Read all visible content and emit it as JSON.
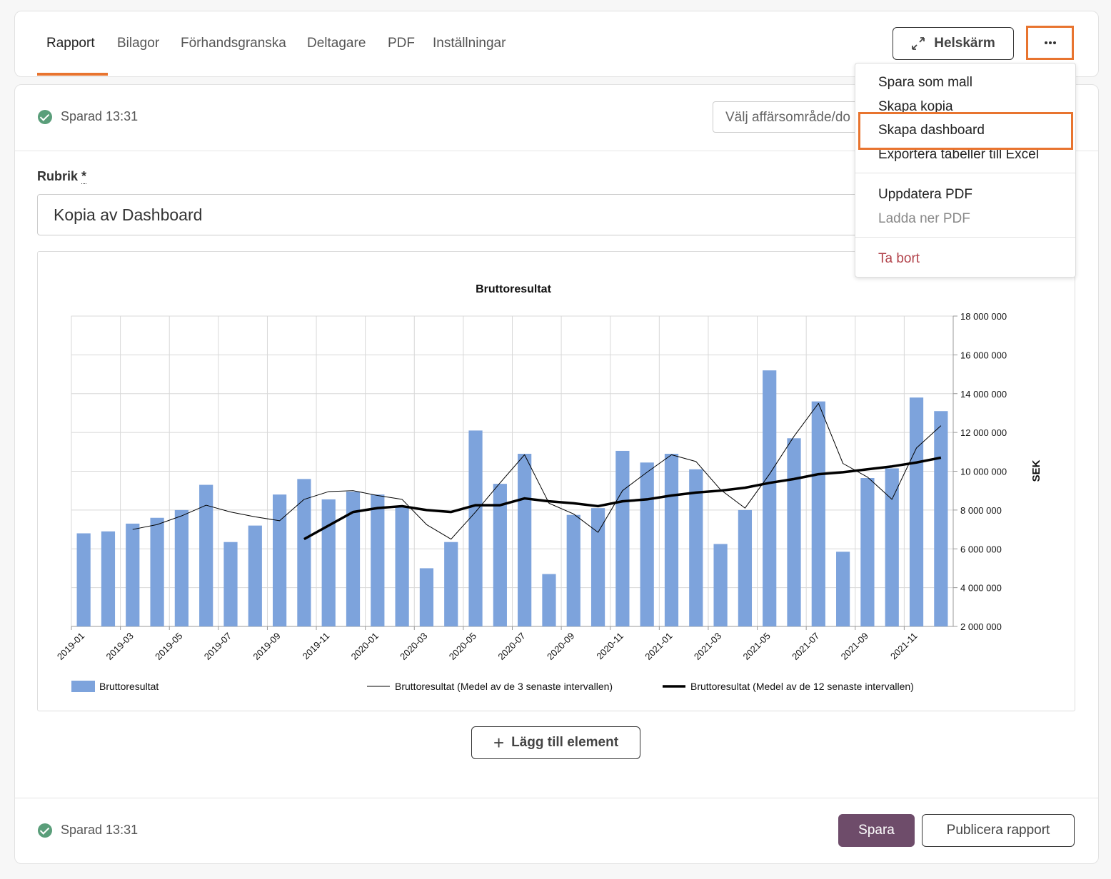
{
  "tabs": [
    "Rapport",
    "Bilagor",
    "Förhandsgranska",
    "Deltagare",
    "PDF",
    "Inställningar"
  ],
  "fullscreen_button": "Helskärm",
  "menu": {
    "groups": [
      [
        "Spara som mall",
        "Skapa kopia",
        "Skapa dashboard",
        "Exportera tabeller till Excel"
      ],
      [
        "Uppdatera PDF",
        "Ladda ner PDF"
      ],
      [
        "Ta bort"
      ]
    ]
  },
  "status": "Sparad 13:31",
  "select_placeholder": "Välj affärsområde/do",
  "heading_label": "Rubrik",
  "required_mark": "*",
  "heading_value": "Kopia av Dashboard",
  "chart_data": {
    "type": "bar",
    "title": "Bruttoresultat",
    "y_label": "SEK",
    "categories": [
      "2019-01",
      null,
      "2019-03",
      null,
      "2019-05",
      null,
      "2019-07",
      null,
      "2019-09",
      null,
      "2019-11",
      null,
      "2020-01",
      null,
      "2020-03",
      null,
      "2020-05",
      null,
      "2020-07",
      null,
      "2020-09",
      null,
      "2020-11",
      null,
      "2021-01",
      null,
      "2021-03",
      null,
      "2021-05",
      null,
      "2021-07",
      null,
      "2021-09",
      null,
      "2021-11",
      null
    ],
    "series": [
      {
        "name": "Bruttoresultat",
        "type": "bar",
        "color": "#7da3dc",
        "values": [
          6800000,
          6900000,
          7300000,
          7600000,
          8000000,
          9300000,
          6350000,
          7200000,
          8800000,
          9600000,
          8550000,
          8950000,
          8800000,
          8200000,
          5000000,
          6350000,
          12100000,
          9350000,
          10900000,
          4700000,
          7750000,
          8100000,
          11050000,
          10450000,
          10900000,
          10100000,
          6250000,
          8000000,
          15200000,
          11700000,
          13600000,
          5850000,
          9650000,
          10150000,
          13800000,
          13100000
        ]
      },
      {
        "name": "Bruttoresultat (Medel av de 3 senaste intervallen)",
        "type": "line",
        "color": "#000000",
        "line_width": 1,
        "values": [
          null,
          null,
          7000000,
          7250000,
          7700000,
          8250000,
          7900000,
          7650000,
          7450000,
          8550000,
          8950000,
          9000000,
          8750000,
          8550000,
          7250000,
          6500000,
          7900000,
          9400000,
          10850000,
          8350000,
          7800000,
          6850000,
          9000000,
          9950000,
          10850000,
          10500000,
          9050000,
          8100000,
          9850000,
          11800000,
          13500000,
          10400000,
          9700000,
          8550000,
          11200000,
          12350000
        ]
      },
      {
        "name": "Bruttoresultat (Medel av de 12 senaste intervallen)",
        "type": "line",
        "color": "#000000",
        "line_width": 3.5,
        "values": [
          null,
          null,
          null,
          null,
          null,
          null,
          null,
          null,
          null,
          6500000,
          7200000,
          7900000,
          8100000,
          8200000,
          8000000,
          7900000,
          8250000,
          8250000,
          8600000,
          8450000,
          8350000,
          8200000,
          8450000,
          8550000,
          8750000,
          8900000,
          9000000,
          9150000,
          9400000,
          9600000,
          9850000,
          9950000,
          10100000,
          10250000,
          10450000,
          10700000
        ]
      }
    ],
    "ylim": [
      2000000,
      18000000
    ],
    "yticks": [
      {
        "value": 2000000,
        "label": "2 000 000"
      },
      {
        "value": 4000000,
        "label": "4 000 000"
      },
      {
        "value": 6000000,
        "label": "6 000 000"
      },
      {
        "value": 8000000,
        "label": "8 000 000"
      },
      {
        "value": 10000000,
        "label": "10 000 000"
      },
      {
        "value": 12000000,
        "label": "12 000 000"
      },
      {
        "value": 14000000,
        "label": "14 000 000"
      },
      {
        "value": 16000000,
        "label": "16 000 000"
      },
      {
        "value": 18000000,
        "label": "18 000 000"
      }
    ],
    "grid": true,
    "y_axis_side": "right",
    "legend": "bottom"
  },
  "add_element_button": "Lägg till element",
  "save_button": "Spara",
  "publish_button": "Publicera rapport"
}
